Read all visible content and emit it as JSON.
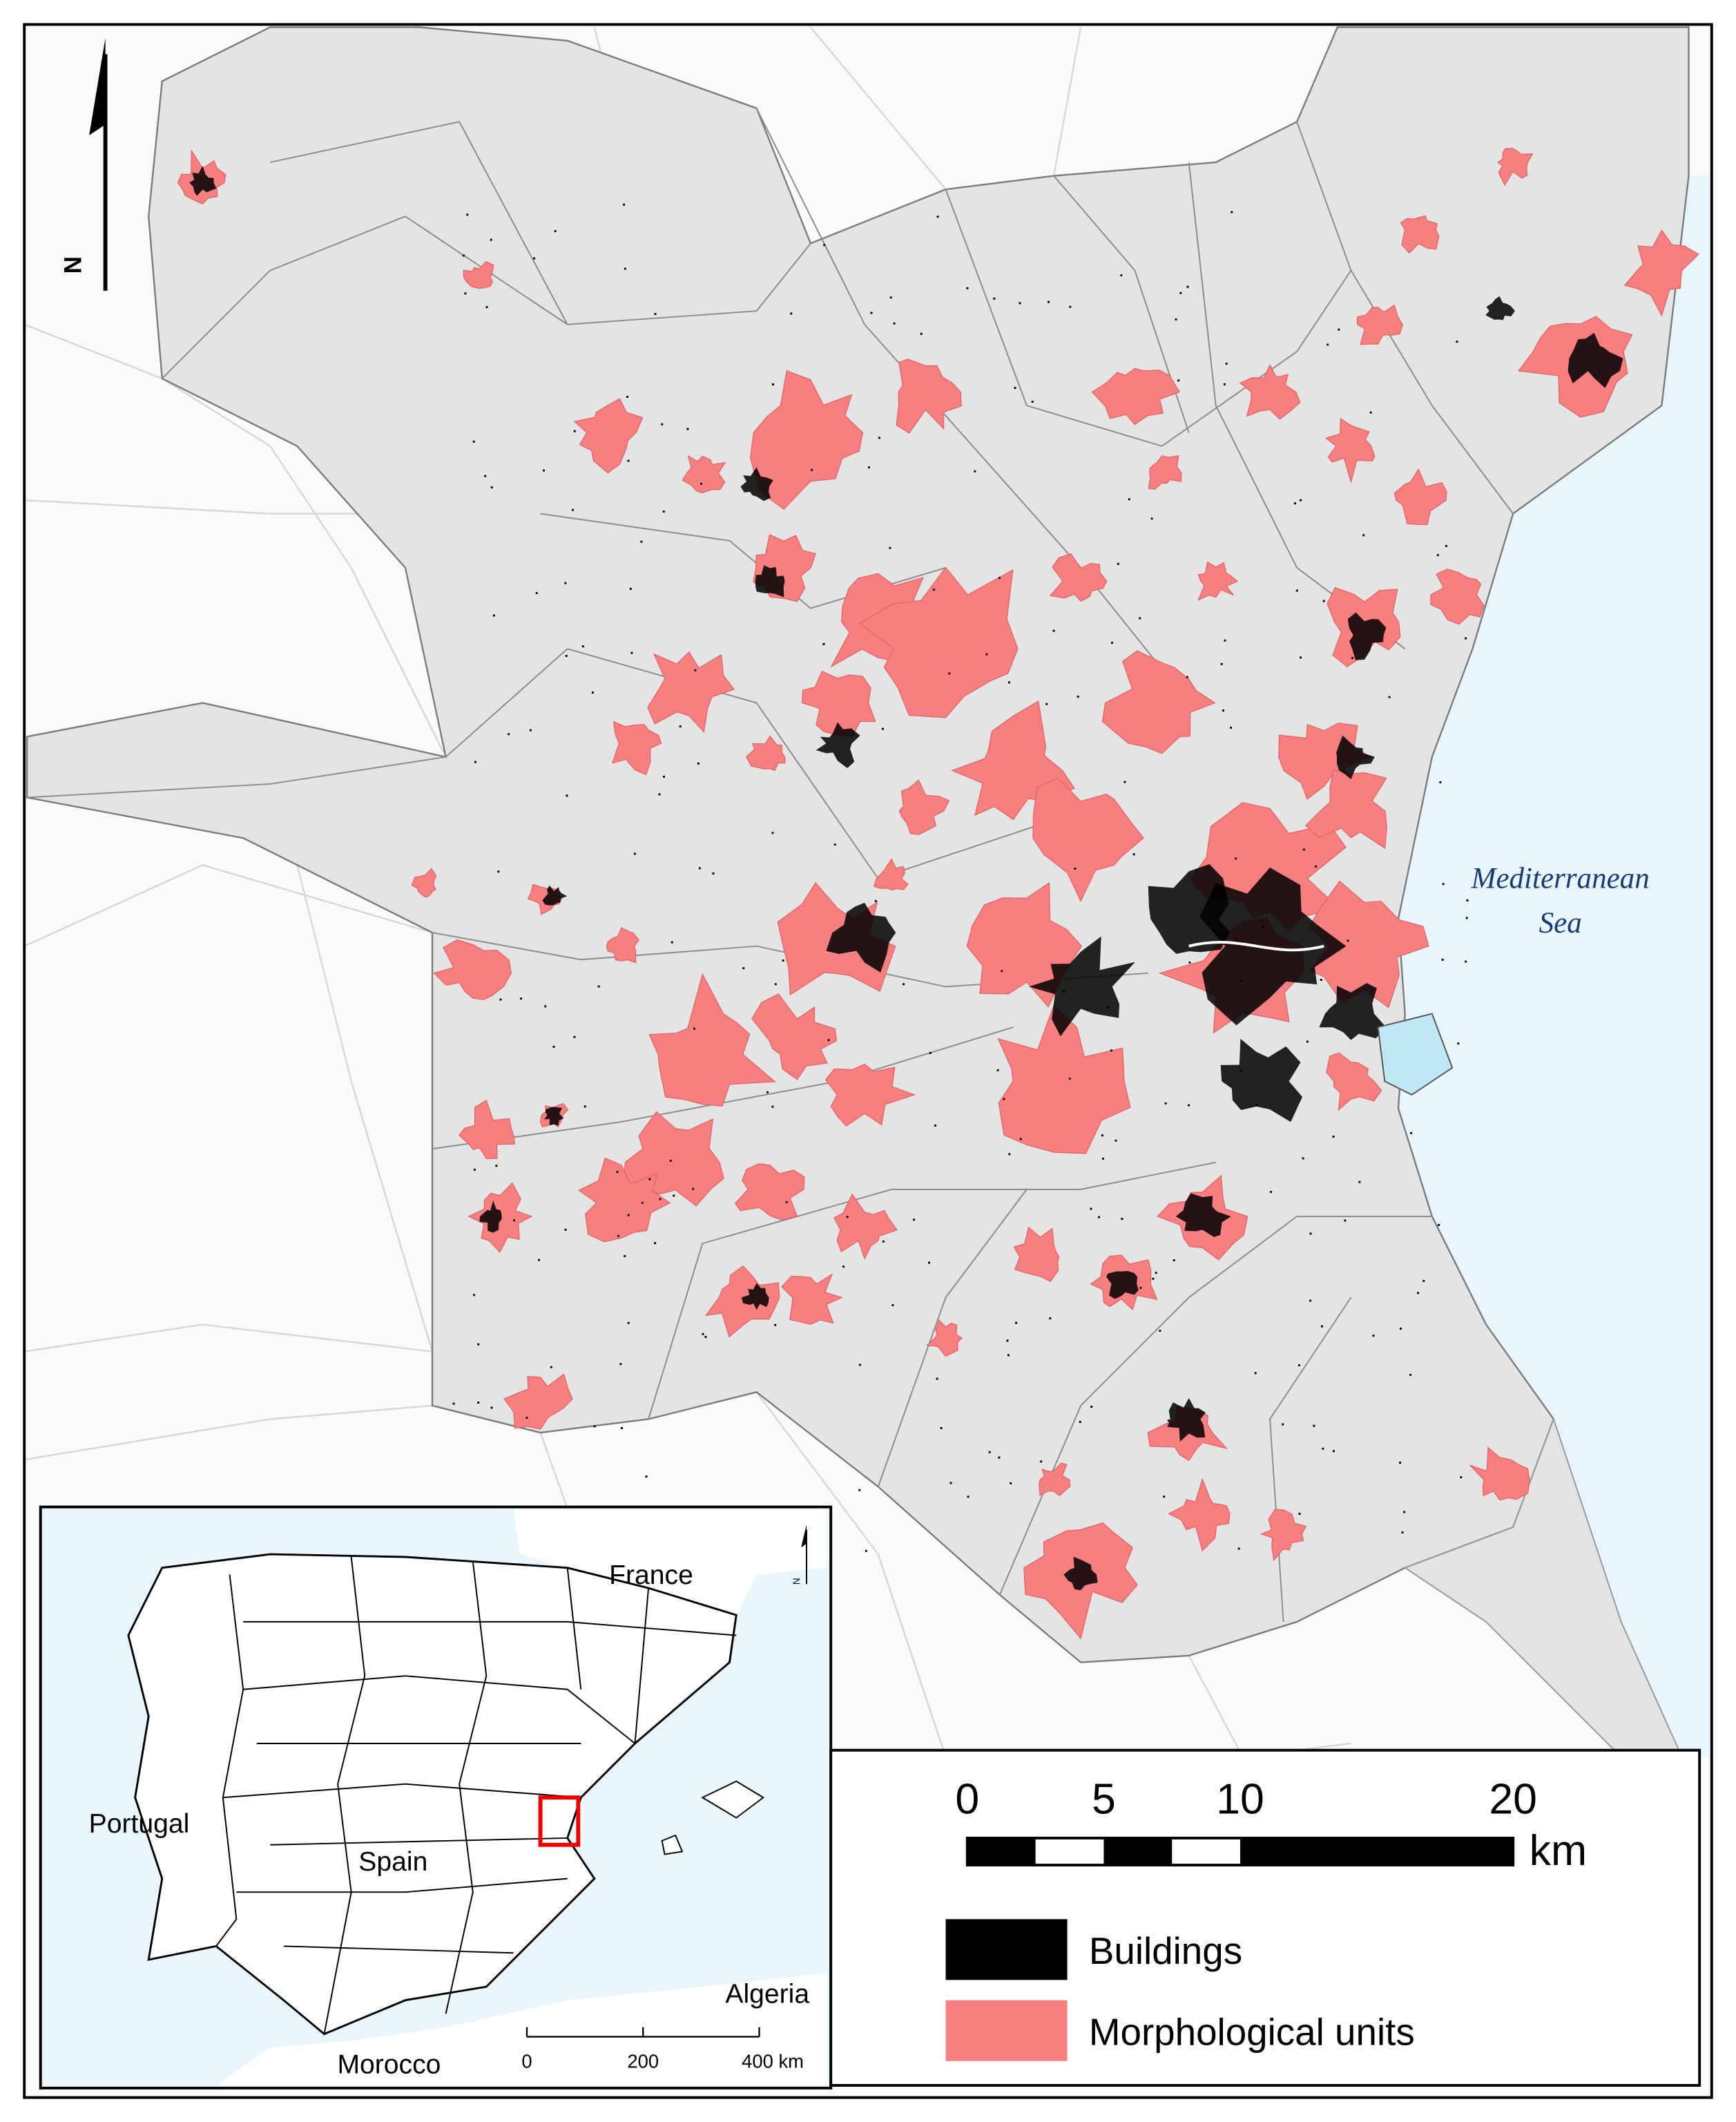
{
  "north_label": "N",
  "sea_label": [
    "Mediterranean",
    "Sea"
  ],
  "scale_bar": {
    "ticks": [
      0,
      5,
      10,
      20
    ],
    "unit": "km"
  },
  "legend": [
    {
      "label": "Buildings",
      "color": "#000000"
    },
    {
      "label": "Morphological units",
      "color": "#f77f7f"
    }
  ],
  "inset": {
    "labels": [
      "France",
      "Portugal",
      "Spain",
      "Algeria",
      "Morocco"
    ],
    "north_label": "N",
    "scale_bar": {
      "ticks": [
        0,
        200,
        {
          "value": 400,
          "label": "400 km"
        }
      ]
    }
  }
}
